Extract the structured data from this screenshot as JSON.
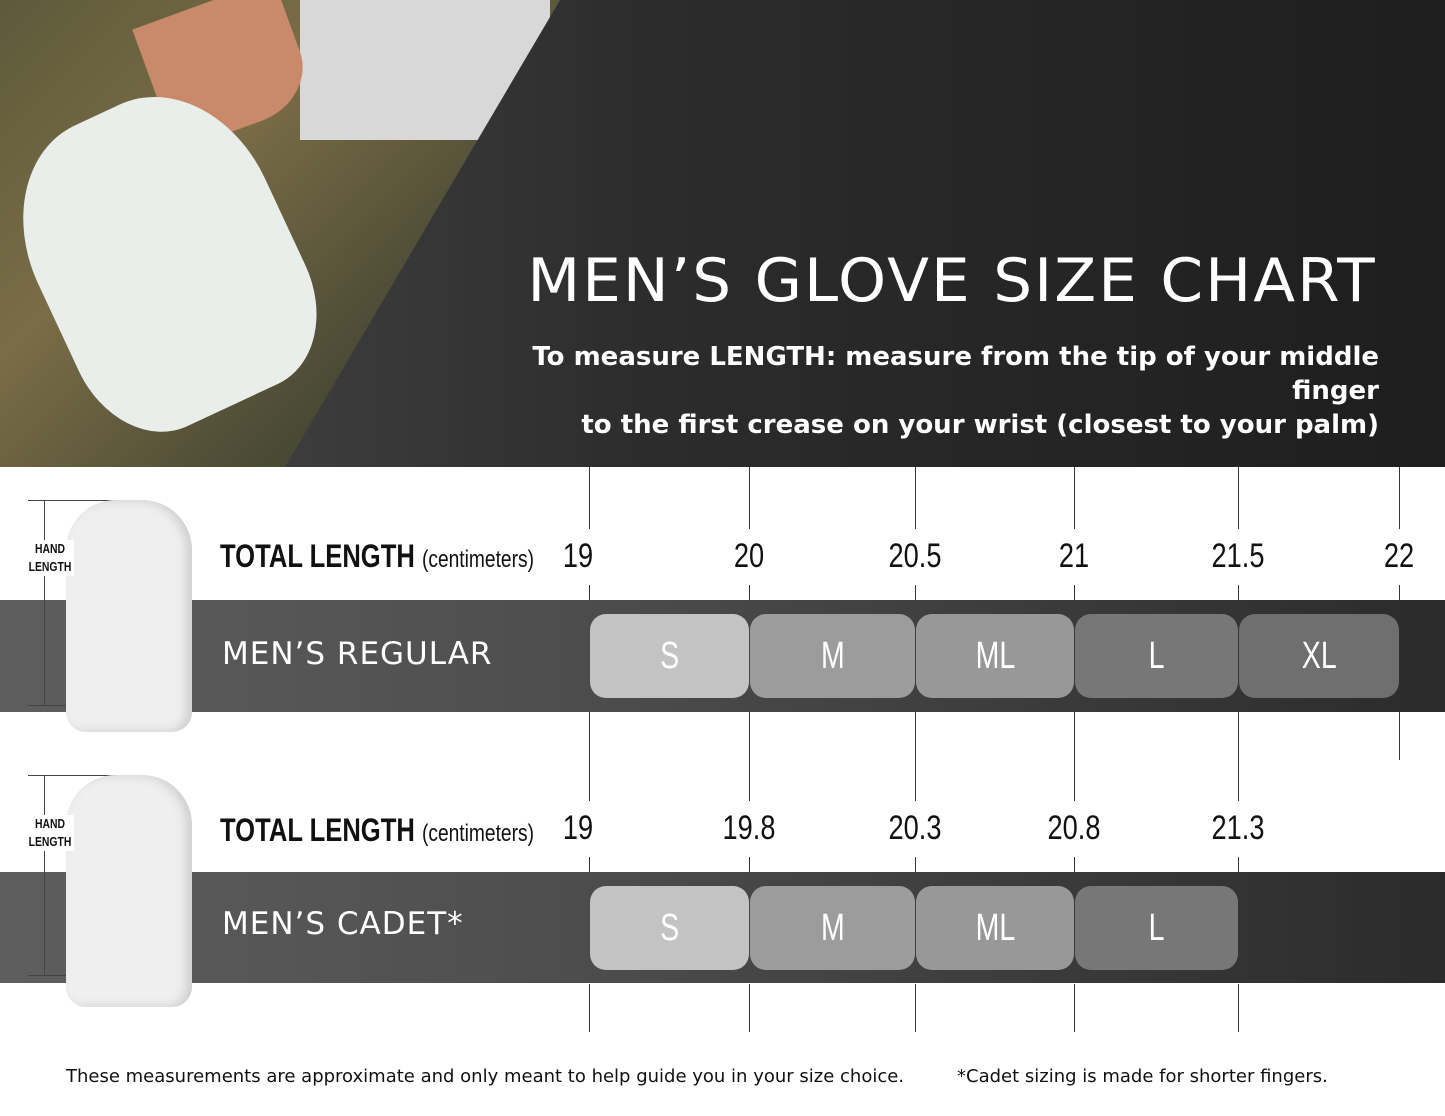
{
  "header": {
    "title": "MEN’S GLOVE SIZE CHART",
    "subtitle_line1": "To measure LENGTH: measure from the tip of your middle finger",
    "subtitle_line2": "to the first crease on your wrist (closest to your palm)"
  },
  "regular": {
    "hand_label_1": "HAND",
    "hand_label_2": "LENGTH",
    "total_length": "TOTAL LENGTH",
    "unit": "(centimeters)",
    "label": "MEN’S REGULAR",
    "ticks": [
      "19",
      "20",
      "20.5",
      "21",
      "21.5",
      "22"
    ],
    "sizes": [
      {
        "size": "S",
        "color": "#c3c3c3"
      },
      {
        "size": "M",
        "color": "#9c9c9c"
      },
      {
        "size": "ML",
        "color": "#989898"
      },
      {
        "size": "L",
        "color": "#777777"
      },
      {
        "size": "XL",
        "color": "#6f6f6f"
      }
    ]
  },
  "cadet": {
    "hand_label_1": "HAND",
    "hand_label_2": "LENGTH",
    "total_length": "TOTAL LENGTH",
    "unit": "(centimeters)",
    "label": "MEN’S CADET*",
    "ticks": [
      "19",
      "19.8",
      "20.3",
      "20.8",
      "21.3"
    ],
    "sizes": [
      {
        "size": "S",
        "color": "#c3c3c3"
      },
      {
        "size": "M",
        "color": "#9c9c9c"
      },
      {
        "size": "ML",
        "color": "#989898"
      },
      {
        "size": "L",
        "color": "#777777"
      }
    ]
  },
  "footer": {
    "disclaimer": "These measurements are approximate and only meant to help guide you in your size choice.",
    "cadet_note": "*Cadet sizing is made for shorter fingers."
  }
}
